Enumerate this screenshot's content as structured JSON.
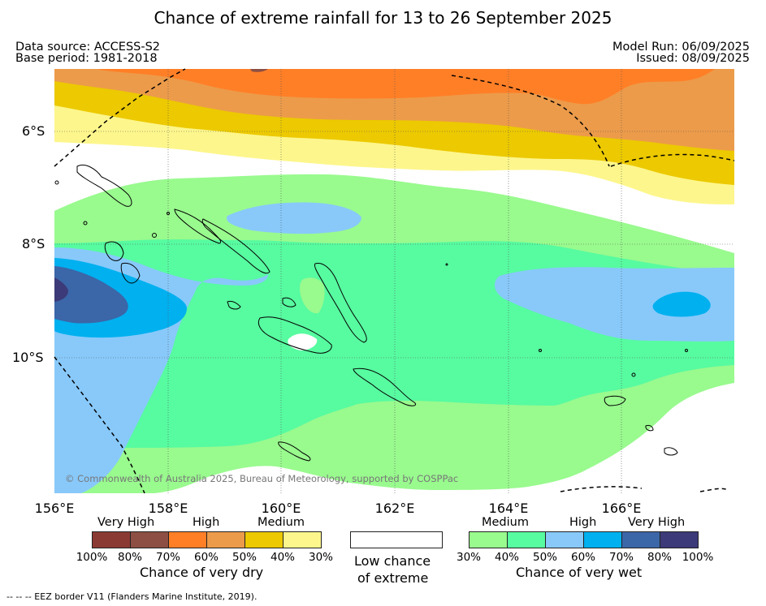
{
  "header": {
    "title": "Chance of extreme rainfall for 13 to 26 September 2025",
    "data_source": "Data source: ACCESS-S2",
    "base_period": "Base period: 1981-2018",
    "model_run": "Model Run: 06/09/2025",
    "issued": "Issued: 08/09/2025"
  },
  "map": {
    "copyright": "© Commonwealth of Australia 2025, Bureau of Meteorology, supported by COSPPac",
    "lat_labels": [
      "6°S",
      "8°S",
      "10°S"
    ],
    "lon_labels": [
      "156°E",
      "158°E",
      "160°E",
      "162°E",
      "164°E",
      "166°E"
    ]
  },
  "legend": {
    "dry": {
      "groups": [
        "Very High",
        "High",
        "Medium"
      ],
      "colors": [
        "#8b3a33",
        "#8d4f43",
        "#ff7f27",
        "#ec9b4a",
        "#ecc900",
        "#fdf68c"
      ],
      "ticks": [
        "100%",
        "80%",
        "70%",
        "60%",
        "50%",
        "40%",
        "30%"
      ],
      "caption": "Chance of very dry"
    },
    "low": {
      "color": "#ffffff",
      "caption_line1": "Low chance",
      "caption_line2": "of extreme"
    },
    "wet": {
      "groups": [
        "Medium",
        "High",
        "Very High"
      ],
      "colors": [
        "#99fa8e",
        "#57fba0",
        "#88c9fa",
        "#00b0ef",
        "#3b66a8",
        "#3c3a78"
      ],
      "ticks": [
        "30%",
        "40%",
        "50%",
        "60%",
        "70%",
        "80%",
        "100%"
      ],
      "caption": "Chance of very wet"
    }
  },
  "footnote": "--  --  -- EEZ border V11 (Flanders Marine Institute, 2019)."
}
